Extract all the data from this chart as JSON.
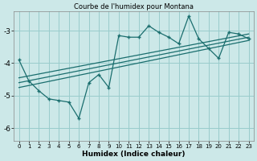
{
  "title": "Courbe de l'humidex pour Montana",
  "xlabel": "Humidex (Indice chaleur)",
  "background_color": "#cce8e8",
  "grid_color": "#99cccc",
  "line_color": "#1a6e6e",
  "xlim": [
    -0.5,
    23.5
  ],
  "ylim": [
    -6.4,
    -2.4
  ],
  "yticks": [
    -6,
    -5,
    -4,
    -3
  ],
  "xticks": [
    0,
    1,
    2,
    3,
    4,
    5,
    6,
    7,
    8,
    9,
    10,
    11,
    12,
    13,
    14,
    15,
    16,
    17,
    18,
    19,
    20,
    21,
    22,
    23
  ],
  "main_line_x": [
    0,
    1,
    2,
    3,
    4,
    5,
    6,
    7,
    8,
    9,
    10,
    11,
    12,
    13,
    14,
    15,
    16,
    17,
    18,
    19,
    20,
    21,
    22,
    23
  ],
  "main_line_y": [
    -3.9,
    -4.55,
    -4.85,
    -5.1,
    -5.15,
    -5.2,
    -5.7,
    -4.6,
    -4.35,
    -4.75,
    -3.15,
    -3.2,
    -3.2,
    -2.85,
    -3.05,
    -3.2,
    -3.4,
    -2.55,
    -3.25,
    -3.55,
    -3.85,
    -3.05,
    -3.1,
    -3.25
  ],
  "reg_line1_x": [
    0,
    23
  ],
  "reg_line1_y": [
    -4.45,
    -3.1
  ],
  "reg_line2_x": [
    0,
    23
  ],
  "reg_line2_y": [
    -4.6,
    -3.2
  ],
  "reg_line3_x": [
    0,
    23
  ],
  "reg_line3_y": [
    -4.75,
    -3.3
  ]
}
